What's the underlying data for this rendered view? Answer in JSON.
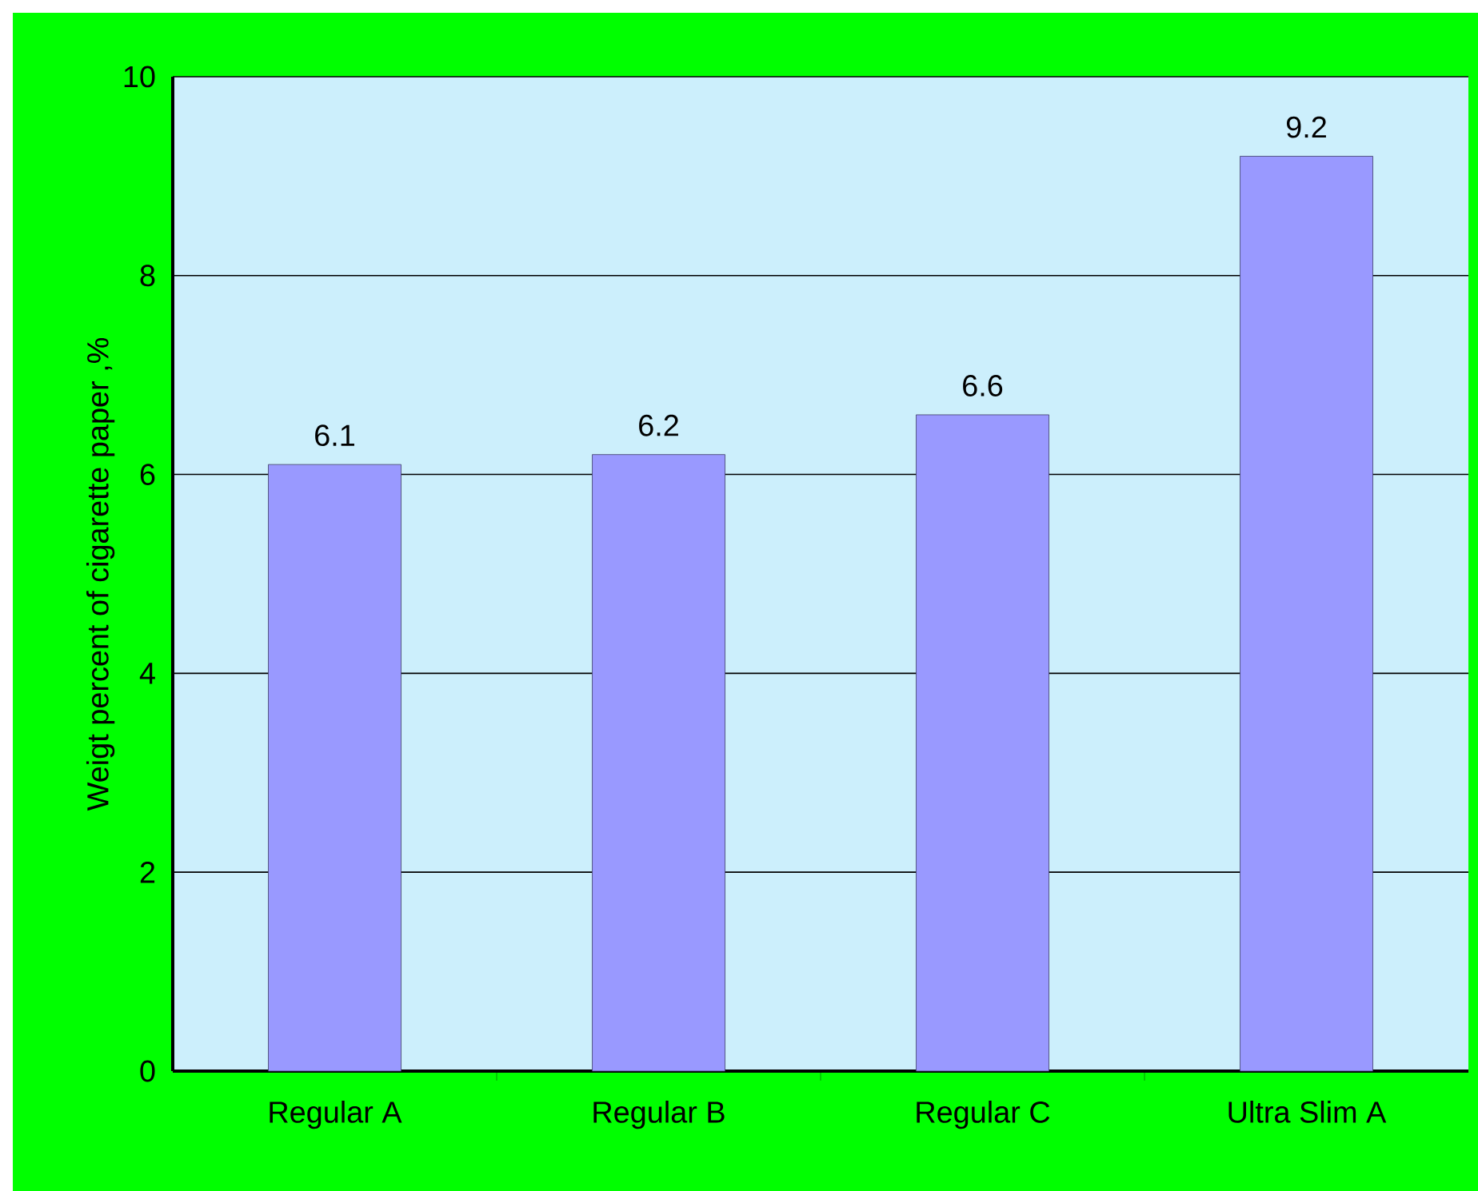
{
  "chart_data": {
    "type": "bar",
    "ylabel": "Weigt percent of cigarette paper ,%",
    "categories": [
      "Regular A",
      "Regular B",
      "Regular C",
      "Ultra Slim A"
    ],
    "values": [
      6.1,
      6.2,
      6.6,
      9.2
    ],
    "color": "#9999ff",
    "ylim": [
      0,
      10
    ],
    "yticks": [
      0,
      2,
      4,
      6,
      8,
      10
    ],
    "grid": "y",
    "data_labels": true
  }
}
